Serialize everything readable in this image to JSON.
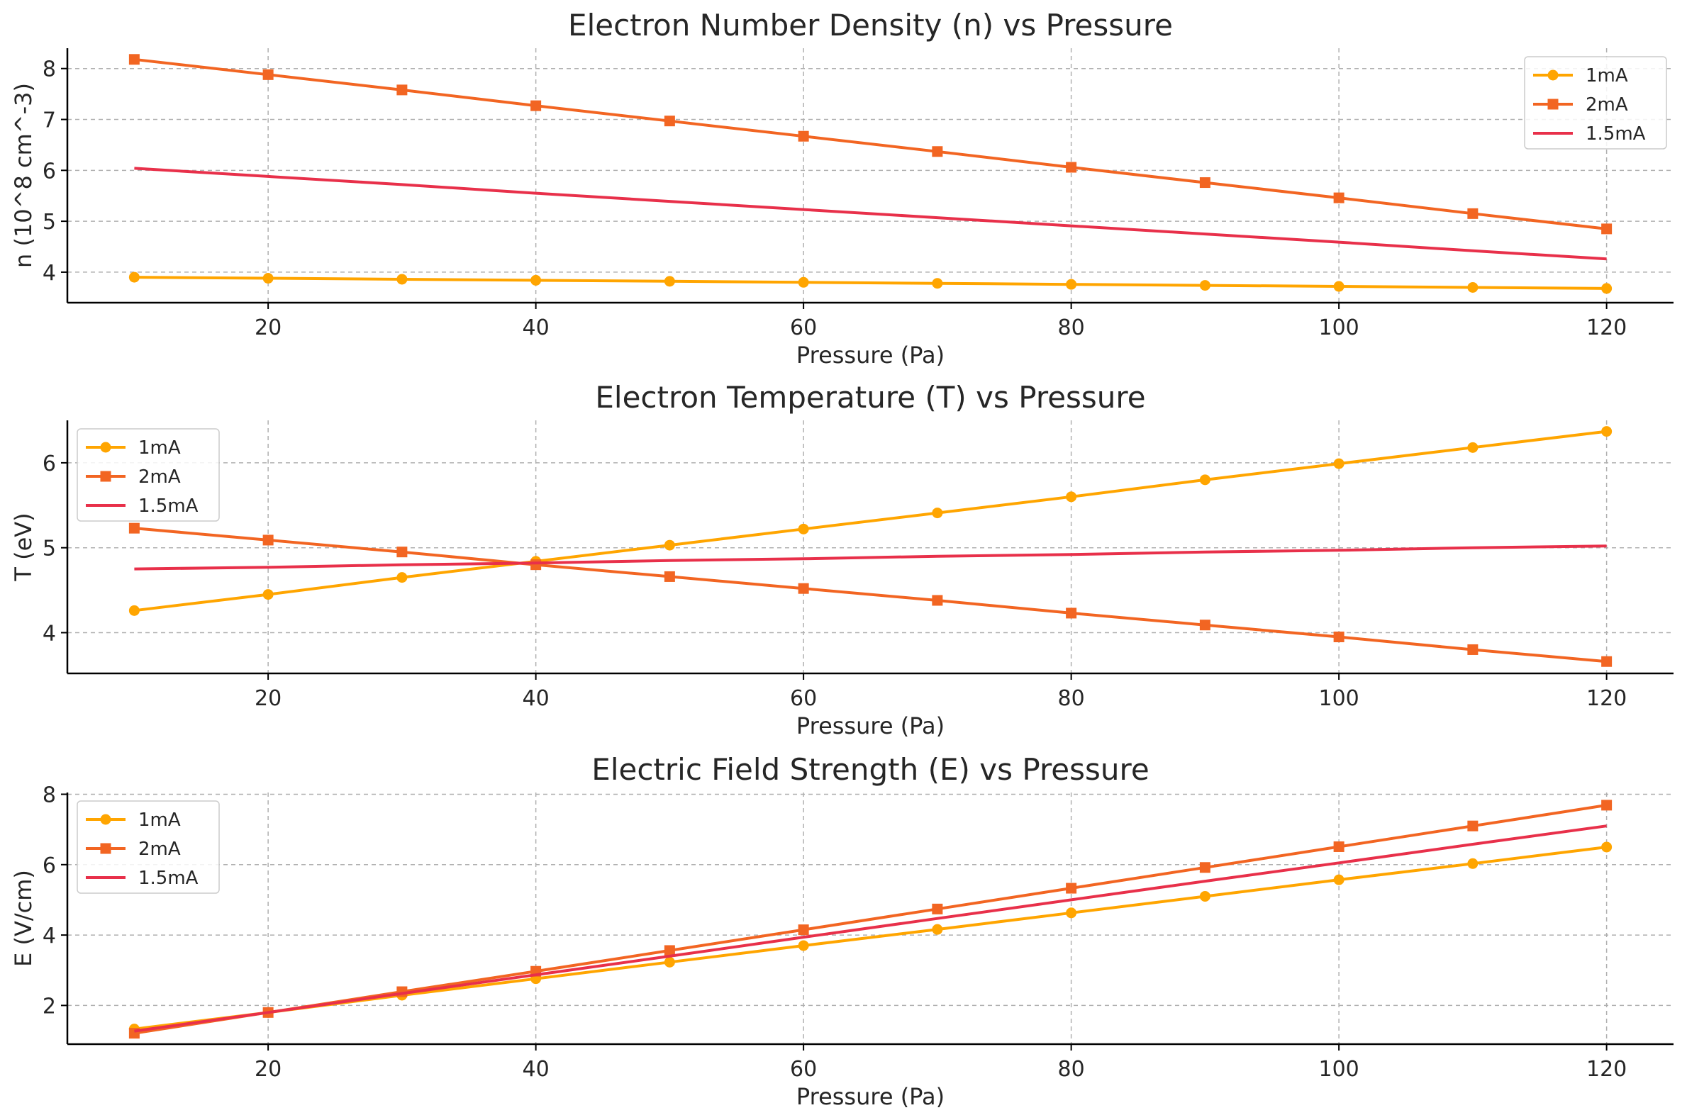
{
  "figure": {
    "background": "#ffffff"
  },
  "chart_data": [
    {
      "type": "line",
      "title": "Electron Number Density (n) vs Pressure",
      "xlabel": "Pressure (Pa)",
      "ylabel": "n (10^8 cm^-3)",
      "x": [
        10,
        20,
        30,
        40,
        50,
        60,
        70,
        80,
        90,
        100,
        110,
        120
      ],
      "xlim": [
        5,
        125
      ],
      "ylim": [
        3.4,
        8.4
      ],
      "xticks": [
        20,
        40,
        60,
        80,
        100,
        120
      ],
      "yticks": [
        4,
        5,
        6,
        7,
        8
      ],
      "grid": true,
      "legend_position": "upper right",
      "series": [
        {
          "name": "1mA",
          "color": "#FFA500",
          "marker": "circle",
          "values": [
            3.9,
            3.88,
            3.86,
            3.84,
            3.82,
            3.8,
            3.78,
            3.76,
            3.74,
            3.72,
            3.7,
            3.68
          ]
        },
        {
          "name": "2mA",
          "color": "#F26522",
          "marker": "square",
          "values": [
            8.18,
            7.88,
            7.58,
            7.27,
            6.97,
            6.67,
            6.37,
            6.06,
            5.76,
            5.46,
            5.15,
            4.85
          ]
        },
        {
          "name": "1.5mA",
          "color": "#E8304A",
          "marker": "none",
          "values": [
            6.04,
            5.88,
            5.72,
            5.55,
            5.39,
            5.23,
            5.07,
            4.91,
            4.75,
            4.59,
            4.42,
            4.26
          ]
        }
      ]
    },
    {
      "type": "line",
      "title": "Electron Temperature (T) vs Pressure",
      "xlabel": "Pressure (Pa)",
      "ylabel": "T (eV)",
      "x": [
        10,
        20,
        30,
        40,
        50,
        60,
        70,
        80,
        90,
        100,
        110,
        120
      ],
      "xlim": [
        5,
        125
      ],
      "ylim": [
        3.52,
        6.5
      ],
      "xticks": [
        20,
        40,
        60,
        80,
        100,
        120
      ],
      "yticks": [
        4,
        5,
        6
      ],
      "grid": true,
      "legend_position": "upper left",
      "series": [
        {
          "name": "1mA",
          "color": "#FFA500",
          "marker": "circle",
          "values": [
            4.26,
            4.45,
            4.65,
            4.84,
            5.03,
            5.22,
            5.41,
            5.6,
            5.8,
            5.99,
            6.18,
            6.37
          ]
        },
        {
          "name": "2mA",
          "color": "#F26522",
          "marker": "square",
          "values": [
            5.23,
            5.09,
            4.95,
            4.8,
            4.66,
            4.52,
            4.38,
            4.23,
            4.09,
            3.95,
            3.8,
            3.66
          ]
        },
        {
          "name": "1.5mA",
          "color": "#E8304A",
          "marker": "none",
          "values": [
            4.75,
            4.77,
            4.8,
            4.82,
            4.85,
            4.87,
            4.9,
            4.92,
            4.95,
            4.97,
            5.0,
            5.02
          ]
        }
      ]
    },
    {
      "type": "line",
      "title": "Electric Field Strength (E) vs Pressure",
      "xlabel": "Pressure (Pa)",
      "ylabel": "E (V/cm)",
      "x": [
        10,
        20,
        30,
        40,
        50,
        60,
        70,
        80,
        90,
        100,
        110,
        120
      ],
      "xlim": [
        5,
        125
      ],
      "ylim": [
        0.9,
        8.05
      ],
      "xticks": [
        20,
        40,
        60,
        80,
        100,
        120
      ],
      "yticks": [
        2,
        4,
        6,
        8
      ],
      "grid": true,
      "legend_position": "upper left",
      "series": [
        {
          "name": "1mA",
          "color": "#FFA500",
          "marker": "circle",
          "values": [
            1.33,
            1.8,
            2.29,
            2.76,
            3.23,
            3.7,
            4.16,
            4.63,
            5.1,
            5.57,
            6.03,
            6.5
          ]
        },
        {
          "name": "2mA",
          "color": "#F26522",
          "marker": "square",
          "values": [
            1.21,
            1.8,
            2.39,
            2.97,
            3.56,
            4.15,
            4.74,
            5.33,
            5.92,
            6.51,
            7.1,
            7.69
          ]
        },
        {
          "name": "1.5mA",
          "color": "#E8304A",
          "marker": "none",
          "values": [
            1.27,
            1.8,
            2.34,
            2.87,
            3.4,
            3.94,
            4.47,
            5.0,
            5.53,
            6.05,
            6.58,
            7.1
          ]
        }
      ]
    }
  ]
}
